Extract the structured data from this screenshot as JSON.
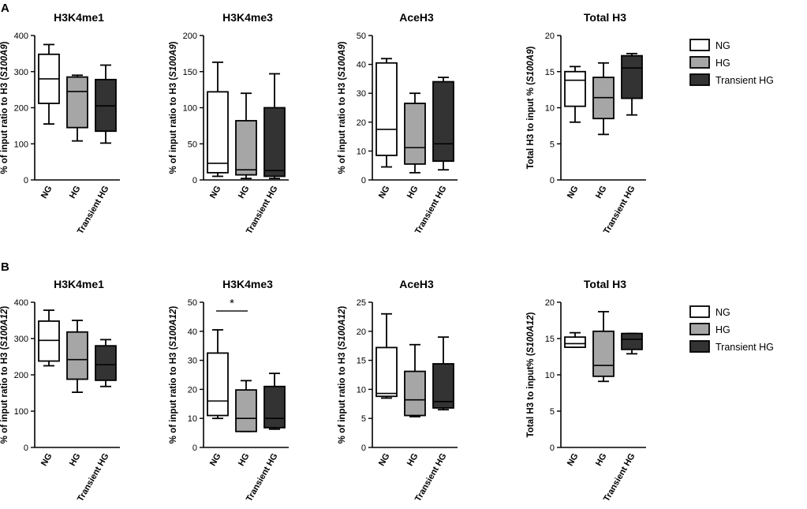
{
  "panels": [
    {
      "letter": "A"
    },
    {
      "letter": "B"
    }
  ],
  "legend": {
    "entries": [
      {
        "label": "NG",
        "color": "#ffffff"
      },
      {
        "label": "HG",
        "color": "#a6a6a6"
      },
      {
        "label": "Transient HG",
        "color": "#333333"
      }
    ]
  },
  "chart_data": [
    {
      "type": "boxplot",
      "panel": "A",
      "title": "H3K4me1",
      "ylabel_prefix": "% of input ratio to H3 (",
      "ylabel_gene": "S100A9",
      "ylabel_suffix": ")",
      "ylim": [
        0,
        400
      ],
      "yticks": [
        "0",
        "100",
        "200",
        "300",
        "400"
      ],
      "categories": [
        "NG",
        "HG",
        "Transient HG"
      ],
      "boxes": [
        {
          "min": 155,
          "q1": 212,
          "median": 280,
          "q3": 348,
          "max": 375
        },
        {
          "min": 108,
          "q1": 145,
          "median": 245,
          "q3": 285,
          "max": 290
        },
        {
          "min": 102,
          "q1": 135,
          "median": 205,
          "q3": 278,
          "max": 318
        }
      ]
    },
    {
      "type": "boxplot",
      "panel": "A",
      "title": "H3K4me3",
      "ylabel_prefix": "% of input ratio to H3 (",
      "ylabel_gene": "S100A9",
      "ylabel_suffix": ")",
      "ylim": [
        0,
        200
      ],
      "yticks": [
        "0",
        "50",
        "100",
        "150",
        "200"
      ],
      "categories": [
        "NG",
        "HG",
        "Transient HG"
      ],
      "boxes": [
        {
          "min": 5,
          "q1": 10,
          "median": 23,
          "q3": 122,
          "max": 163
        },
        {
          "min": 2,
          "q1": 7,
          "median": 14,
          "q3": 82,
          "max": 120
        },
        {
          "min": 2,
          "q1": 5,
          "median": 13,
          "q3": 100,
          "max": 147
        }
      ]
    },
    {
      "type": "boxplot",
      "panel": "A",
      "title": "AceH3",
      "ylabel_prefix": "% of input ratio to H3 (",
      "ylabel_gene": "S100A9",
      "ylabel_suffix": ")",
      "ylim": [
        0,
        50
      ],
      "yticks": [
        "0",
        "10",
        "20",
        "30",
        "40",
        "50"
      ],
      "categories": [
        "NG",
        "HG",
        "Transient HG"
      ],
      "boxes": [
        {
          "min": 4.5,
          "q1": 8.5,
          "median": 17.5,
          "q3": 40.5,
          "max": 42
        },
        {
          "min": 2.5,
          "q1": 5.5,
          "median": 11.2,
          "q3": 26.5,
          "max": 30
        },
        {
          "min": 3.5,
          "q1": 6.5,
          "median": 12.5,
          "q3": 34,
          "max": 35.5
        }
      ]
    },
    {
      "type": "boxplot",
      "panel": "A",
      "title": "Total H3",
      "ylabel_prefix": "Total H3 to input % (",
      "ylabel_gene": "S100A9",
      "ylabel_suffix": ")",
      "ylim": [
        0,
        20
      ],
      "yticks": [
        "0",
        "5",
        "10",
        "15",
        "20"
      ],
      "categories": [
        "NG",
        "HG",
        "Transient HG"
      ],
      "boxes": [
        {
          "min": 8,
          "q1": 10.2,
          "median": 13.8,
          "q3": 15,
          "max": 15.7
        },
        {
          "min": 6.3,
          "q1": 8.5,
          "median": 11.4,
          "q3": 14.2,
          "max": 16.2
        },
        {
          "min": 9,
          "q1": 11.3,
          "median": 15.5,
          "q3": 17.2,
          "max": 17.5
        }
      ]
    },
    {
      "type": "boxplot",
      "panel": "B",
      "title": "H3K4me1",
      "ylabel_prefix": "% of input ratio to H3 (",
      "ylabel_gene": "S100A12",
      "ylabel_suffix": ")",
      "ylim": [
        0,
        400
      ],
      "yticks": [
        "0",
        "100",
        "200",
        "300",
        "400"
      ],
      "categories": [
        "NG",
        "HG",
        "Transient HG"
      ],
      "boxes": [
        {
          "min": 225,
          "q1": 238,
          "median": 295,
          "q3": 348,
          "max": 378
        },
        {
          "min": 152,
          "q1": 188,
          "median": 242,
          "q3": 318,
          "max": 350
        },
        {
          "min": 168,
          "q1": 185,
          "median": 228,
          "q3": 280,
          "max": 297
        }
      ]
    },
    {
      "type": "boxplot",
      "panel": "B",
      "title": "H3K4me3",
      "ylabel_prefix": "% of input ratio to H3 (",
      "ylabel_gene": "S100A12",
      "ylabel_suffix": ")",
      "ylim": [
        0,
        50
      ],
      "yticks": [
        "0",
        "10",
        "20",
        "30",
        "40",
        "50"
      ],
      "categories": [
        "NG",
        "HG",
        "Transient HG"
      ],
      "boxes": [
        {
          "min": 10,
          "q1": 11,
          "median": 16,
          "q3": 32.5,
          "max": 40.5
        },
        {
          "min": 5.5,
          "q1": 5.5,
          "median": 10,
          "q3": 19.8,
          "max": 23
        },
        {
          "min": 6.3,
          "q1": 6.8,
          "median": 10,
          "q3": 21,
          "max": 25.5
        }
      ],
      "significance": {
        "label": "*",
        "from": "NG",
        "to": "HG",
        "y": 47
      }
    },
    {
      "type": "boxplot",
      "panel": "B",
      "title": "AceH3",
      "ylabel_prefix": "% of input ratio to H3 (",
      "ylabel_gene": "S100A12",
      "ylabel_suffix": ")",
      "ylim": [
        0,
        25
      ],
      "yticks": [
        "0",
        "5",
        "10",
        "15",
        "20",
        "25"
      ],
      "categories": [
        "NG",
        "HG",
        "Transient HG"
      ],
      "boxes": [
        {
          "min": 8.5,
          "q1": 8.8,
          "median": 9.3,
          "q3": 17.2,
          "max": 23
        },
        {
          "min": 5.3,
          "q1": 5.5,
          "median": 8.2,
          "q3": 13.1,
          "max": 17.7
        },
        {
          "min": 6.5,
          "q1": 6.8,
          "median": 7.9,
          "q3": 14.4,
          "max": 19
        }
      ]
    },
    {
      "type": "boxplot",
      "panel": "B",
      "title": "Total H3",
      "ylabel_prefix": "Total H3 to input% (",
      "ylabel_gene": "S100A12",
      "ylabel_suffix": ")",
      "ylim": [
        0,
        20
      ],
      "yticks": [
        "0",
        "5",
        "10",
        "15",
        "20"
      ],
      "categories": [
        "NG",
        "HG",
        "Transient HG"
      ],
      "boxes": [
        {
          "min": 13.8,
          "q1": 13.8,
          "median": 14.3,
          "q3": 15.2,
          "max": 15.8
        },
        {
          "min": 9.1,
          "q1": 9.8,
          "median": 11.3,
          "q3": 16,
          "max": 18.7
        },
        {
          "min": 12.9,
          "q1": 13.5,
          "median": 14.9,
          "q3": 15.7,
          "max": 15.7
        }
      ]
    }
  ]
}
